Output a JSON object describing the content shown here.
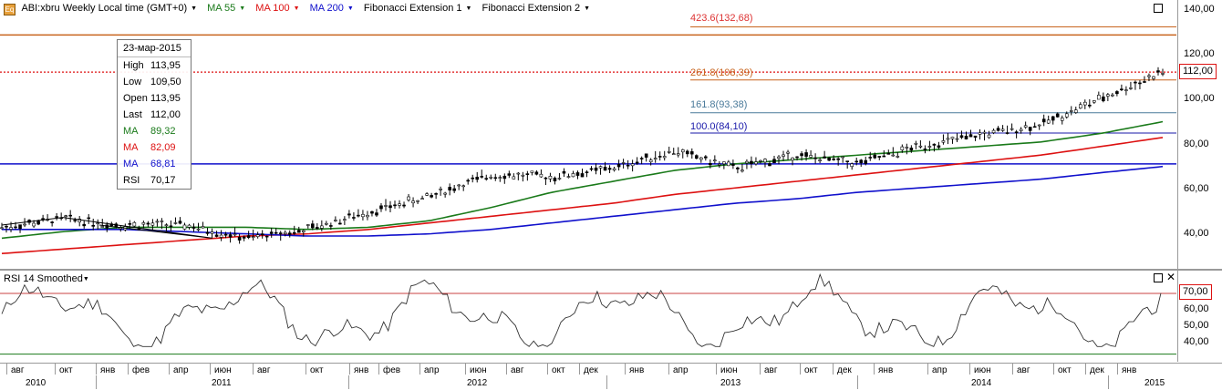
{
  "legend": {
    "symbol": "ABI:xbru Weekly Local time (GMT+0)",
    "ma55": "MA 55",
    "ma100": "MA 100",
    "ma200": "MA 200",
    "fib1": "Fibonacci Extension 1",
    "fib2": "Fibonacci Extension 2"
  },
  "colors": {
    "ma55": "#1a7a1a",
    "ma100": "#dd1111",
    "ma200": "#1010cc",
    "fib_orange": "#c8641e",
    "fib_steel": "#4a7a9a",
    "fib_navy": "#1a1aaa",
    "last_price": "#dd1111"
  },
  "data_window": {
    "date": "23-мар-2015",
    "high_label": "High",
    "high": "113,95",
    "low_label": "Low",
    "low": "109,50",
    "open_label": "Open",
    "open": "113,95",
    "last_label": "Last",
    "last": "112,00",
    "ma55_label": "MA",
    "ma55": "89,32",
    "ma100_label": "MA",
    "ma100": "82,09",
    "ma200_label": "MA",
    "ma200": "68,81",
    "rsi_label": "RSI",
    "rsi": "70,17"
  },
  "fib_levels": {
    "l423": "423.6(132,68)",
    "l261": "261.8(108,39)",
    "l161": "161.8(93,38)",
    "l100": "100.0(84,10)"
  },
  "price_axis": [
    "140,00",
    "120,00",
    "100,00",
    "80,00",
    "60,00",
    "40,00"
  ],
  "last_price_tag": "112,00",
  "rsi": {
    "title": "RSI 14 Smoothed",
    "axis": [
      "60,00",
      "50,00",
      "40,00"
    ],
    "level_tag": "70,00",
    "close_symbol": "✕"
  },
  "time_axis": {
    "months": [
      "авг",
      "окт",
      "янв",
      "фев",
      "апр",
      "июн",
      "авг",
      "окт",
      "янв",
      "фев",
      "апр",
      "июн",
      "авг",
      "окт",
      "дек",
      "янв",
      "апр",
      "июн",
      "авг",
      "окт",
      "дек",
      "янв",
      "апр",
      "июн",
      "авг",
      "окт",
      "дек",
      "янв"
    ],
    "years": [
      "2010",
      "2011",
      "2012",
      "2013",
      "2014",
      "2015"
    ]
  },
  "chart_data": {
    "type": "line",
    "title": "",
    "xlabel": "",
    "ylabel": "",
    "x": [
      "2010-07",
      "2010-10",
      "2011-01",
      "2011-04",
      "2011-07",
      "2011-10",
      "2012-01",
      "2012-04",
      "2012-07",
      "2012-10",
      "2013-01",
      "2013-04",
      "2013-07",
      "2013-10",
      "2014-01",
      "2014-04",
      "2014-07",
      "2014-10",
      "2015-01",
      "2015-03"
    ],
    "series": [
      {
        "name": "ABI:xbru",
        "values": [
          41,
          45,
          42,
          42,
          36,
          40,
          48,
          55,
          65,
          64,
          68,
          76,
          68,
          74,
          70,
          78,
          83,
          88,
          100,
          112
        ]
      },
      {
        "name": "MA 55",
        "values": [
          36,
          39,
          41,
          41,
          41,
          40,
          41,
          44,
          50,
          57,
          62,
          67,
          70,
          72,
          74,
          76,
          78,
          80,
          84,
          89.32
        ]
      },
      {
        "name": "MA 100",
        "values": [
          29,
          31,
          33,
          35,
          37,
          38,
          40,
          43,
          46,
          49,
          52,
          56,
          59,
          62,
          65,
          68,
          71,
          74,
          78,
          82.09
        ]
      },
      {
        "name": "MA 200",
        "values": [
          40,
          40,
          40,
          39,
          38,
          37,
          37,
          38,
          40,
          43,
          46,
          49,
          52,
          54,
          57,
          59,
          61,
          63,
          66,
          68.81
        ]
      }
    ],
    "horizontal_levels": [
      {
        "label": "423.6(132,68)",
        "value": 132.68
      },
      {
        "label": "261.8(108,39)",
        "value": 108.39
      },
      {
        "label": "161.8(93,38)",
        "value": 93.38
      },
      {
        "label": "100.0(84,10)",
        "value": 84.1
      },
      {
        "label": "",
        "value": 129
      },
      {
        "label": "",
        "value": 70
      }
    ],
    "ylim": [
      22,
      145
    ],
    "rsi": {
      "name": "RSI 14 Smoothed",
      "level": 70,
      "last": 70.17
    },
    "grid": false
  }
}
